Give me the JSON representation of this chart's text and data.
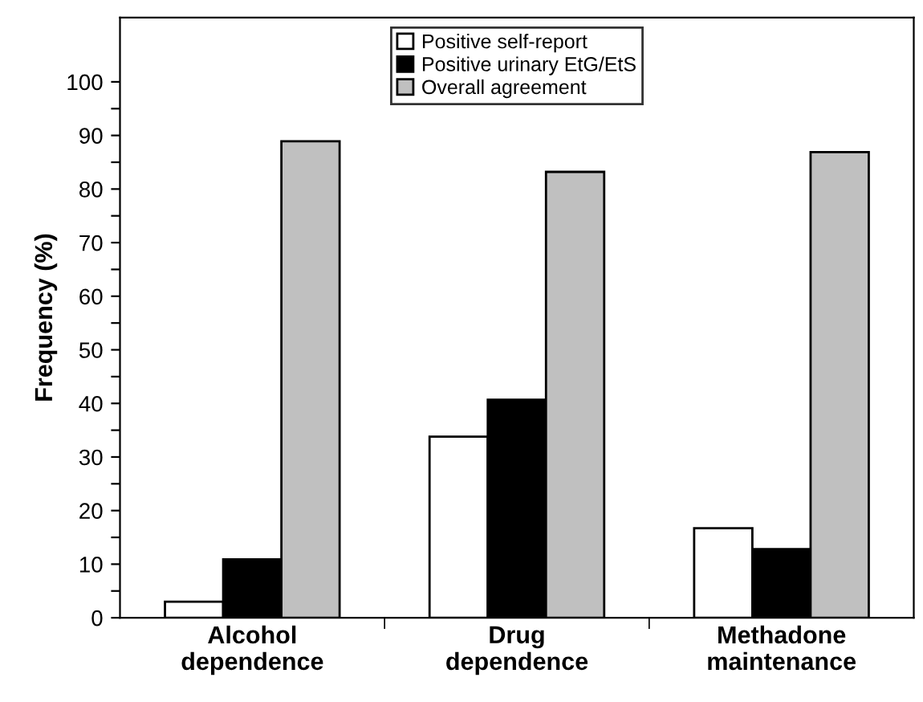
{
  "chart_data": {
    "type": "bar",
    "ylabel": "Frequency (%)",
    "categories": [
      "Alcohol\ndependence",
      "Drug\ndependence",
      "Methadone\nmaintenance"
    ],
    "series": [
      {
        "name": "Positive self-report",
        "color": "#ffffff",
        "values": [
          3.0,
          33.8,
          16.7
        ]
      },
      {
        "name": "Positive urinary EtG/EtS",
        "color": "#000000",
        "values": [
          10.9,
          40.7,
          12.8
        ]
      },
      {
        "name": "Overall agreement",
        "color": "#c0c0c0",
        "values": [
          88.9,
          83.2,
          86.9
        ]
      }
    ],
    "ylim": [
      0,
      112
    ],
    "yticks": [
      0,
      {
        "value": 5,
        "label": null
      },
      10,
      {
        "value": 15,
        "label": null
      },
      20,
      {
        "value": 25,
        "label": null
      },
      30,
      {
        "value": 35,
        "label": null
      },
      40,
      {
        "value": 45,
        "label": null
      },
      50,
      {
        "value": 55,
        "label": null
      },
      60,
      {
        "value": 65,
        "label": null
      },
      70,
      {
        "value": 75,
        "label": null
      },
      80,
      {
        "value": 85,
        "label": null
      },
      90,
      {
        "value": 95,
        "label": null
      },
      100
    ],
    "grid": false,
    "legend": "top"
  }
}
